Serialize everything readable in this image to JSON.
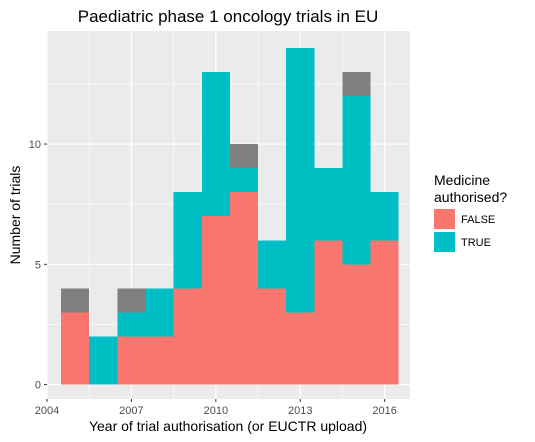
{
  "chart_data": {
    "type": "bar",
    "stacked": true,
    "title": "Paediatric phase 1 oncology trials in EU",
    "xlabel": "Year of trial authorisation (or EUCTR upload)",
    "ylabel": "Number of trials",
    "x_ticks": [
      2004,
      2007,
      2010,
      2013,
      2016
    ],
    "y_ticks": [
      0,
      5,
      10
    ],
    "xlim": [
      2004,
      2016.9
    ],
    "ylim": [
      -0.6,
      14.7
    ],
    "grid": true,
    "bins": [
      {
        "start": 2004.5,
        "end": 2005.5
      },
      {
        "start": 2005.5,
        "end": 2006.5
      },
      {
        "start": 2006.5,
        "end": 2007.5
      },
      {
        "start": 2007.5,
        "end": 2008.5
      },
      {
        "start": 2008.5,
        "end": 2009.5
      },
      {
        "start": 2009.5,
        "end": 2010.5
      },
      {
        "start": 2010.5,
        "end": 2011.5
      },
      {
        "start": 2011.5,
        "end": 2012.5
      },
      {
        "start": 2012.5,
        "end": 2013.5
      },
      {
        "start": 2013.5,
        "end": 2014.5
      },
      {
        "start": 2014.5,
        "end": 2015.5
      },
      {
        "start": 2015.5,
        "end": 2016.5
      }
    ],
    "series": [
      {
        "key": "false",
        "values": [
          3,
          0,
          2,
          2,
          4,
          7,
          8,
          4,
          3,
          6,
          5,
          6
        ],
        "color": "#F8766D"
      },
      {
        "key": "true",
        "values": [
          0,
          2,
          1,
          2,
          4,
          6,
          1,
          2,
          11,
          3,
          7,
          2
        ],
        "color": "#00BFC4"
      },
      {
        "key": "na",
        "values": [
          1,
          0,
          1,
          0,
          0,
          0,
          1,
          0,
          0,
          0,
          1,
          0
        ],
        "color": "#7F7F7F"
      }
    ],
    "legend": {
      "title_line1": "Medicine",
      "title_line2": "authorised?",
      "entries": [
        {
          "label": "FALSE",
          "color": "#F8766D"
        },
        {
          "label": "TRUE",
          "color": "#00BFC4"
        }
      ],
      "position": "right"
    },
    "panel_background": "#EBEBEB",
    "gridline_color": "#FFFFFF"
  }
}
